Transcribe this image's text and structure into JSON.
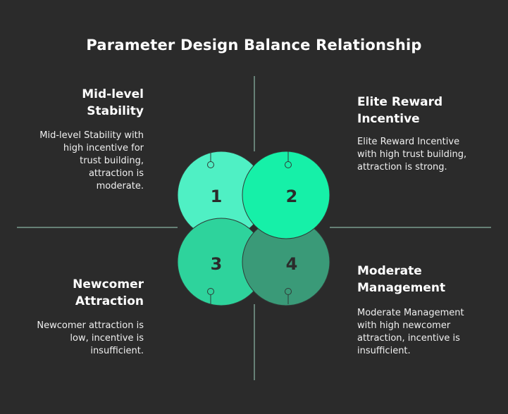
{
  "title": "Parameter Design Balance Relationship",
  "quadrants": [
    {
      "number": "1",
      "heading": "Mid-level Stability",
      "description": "Mid-level Stability with high incentive for trust building, attraction is moderate.",
      "color": "#4ff0c4"
    },
    {
      "number": "2",
      "heading": "Elite Reward Incentive",
      "description": "Elite Reward Incentive with high trust building, attraction is strong.",
      "color": "#16f0a8"
    },
    {
      "number": "3",
      "heading": "Newcomer Attraction",
      "description": "Newcomer attraction is low, incentive is insufficient.",
      "color": "#2ed39c"
    },
    {
      "number": "4",
      "heading": "Moderate Management",
      "description": "Moderate Management with high newcomer attraction, incentive is insufficient.",
      "color": "#3a9a78"
    }
  ],
  "colors": {
    "background": "#2b2b2b",
    "axis": "#7a9c90",
    "outline": "#2f3a36"
  }
}
